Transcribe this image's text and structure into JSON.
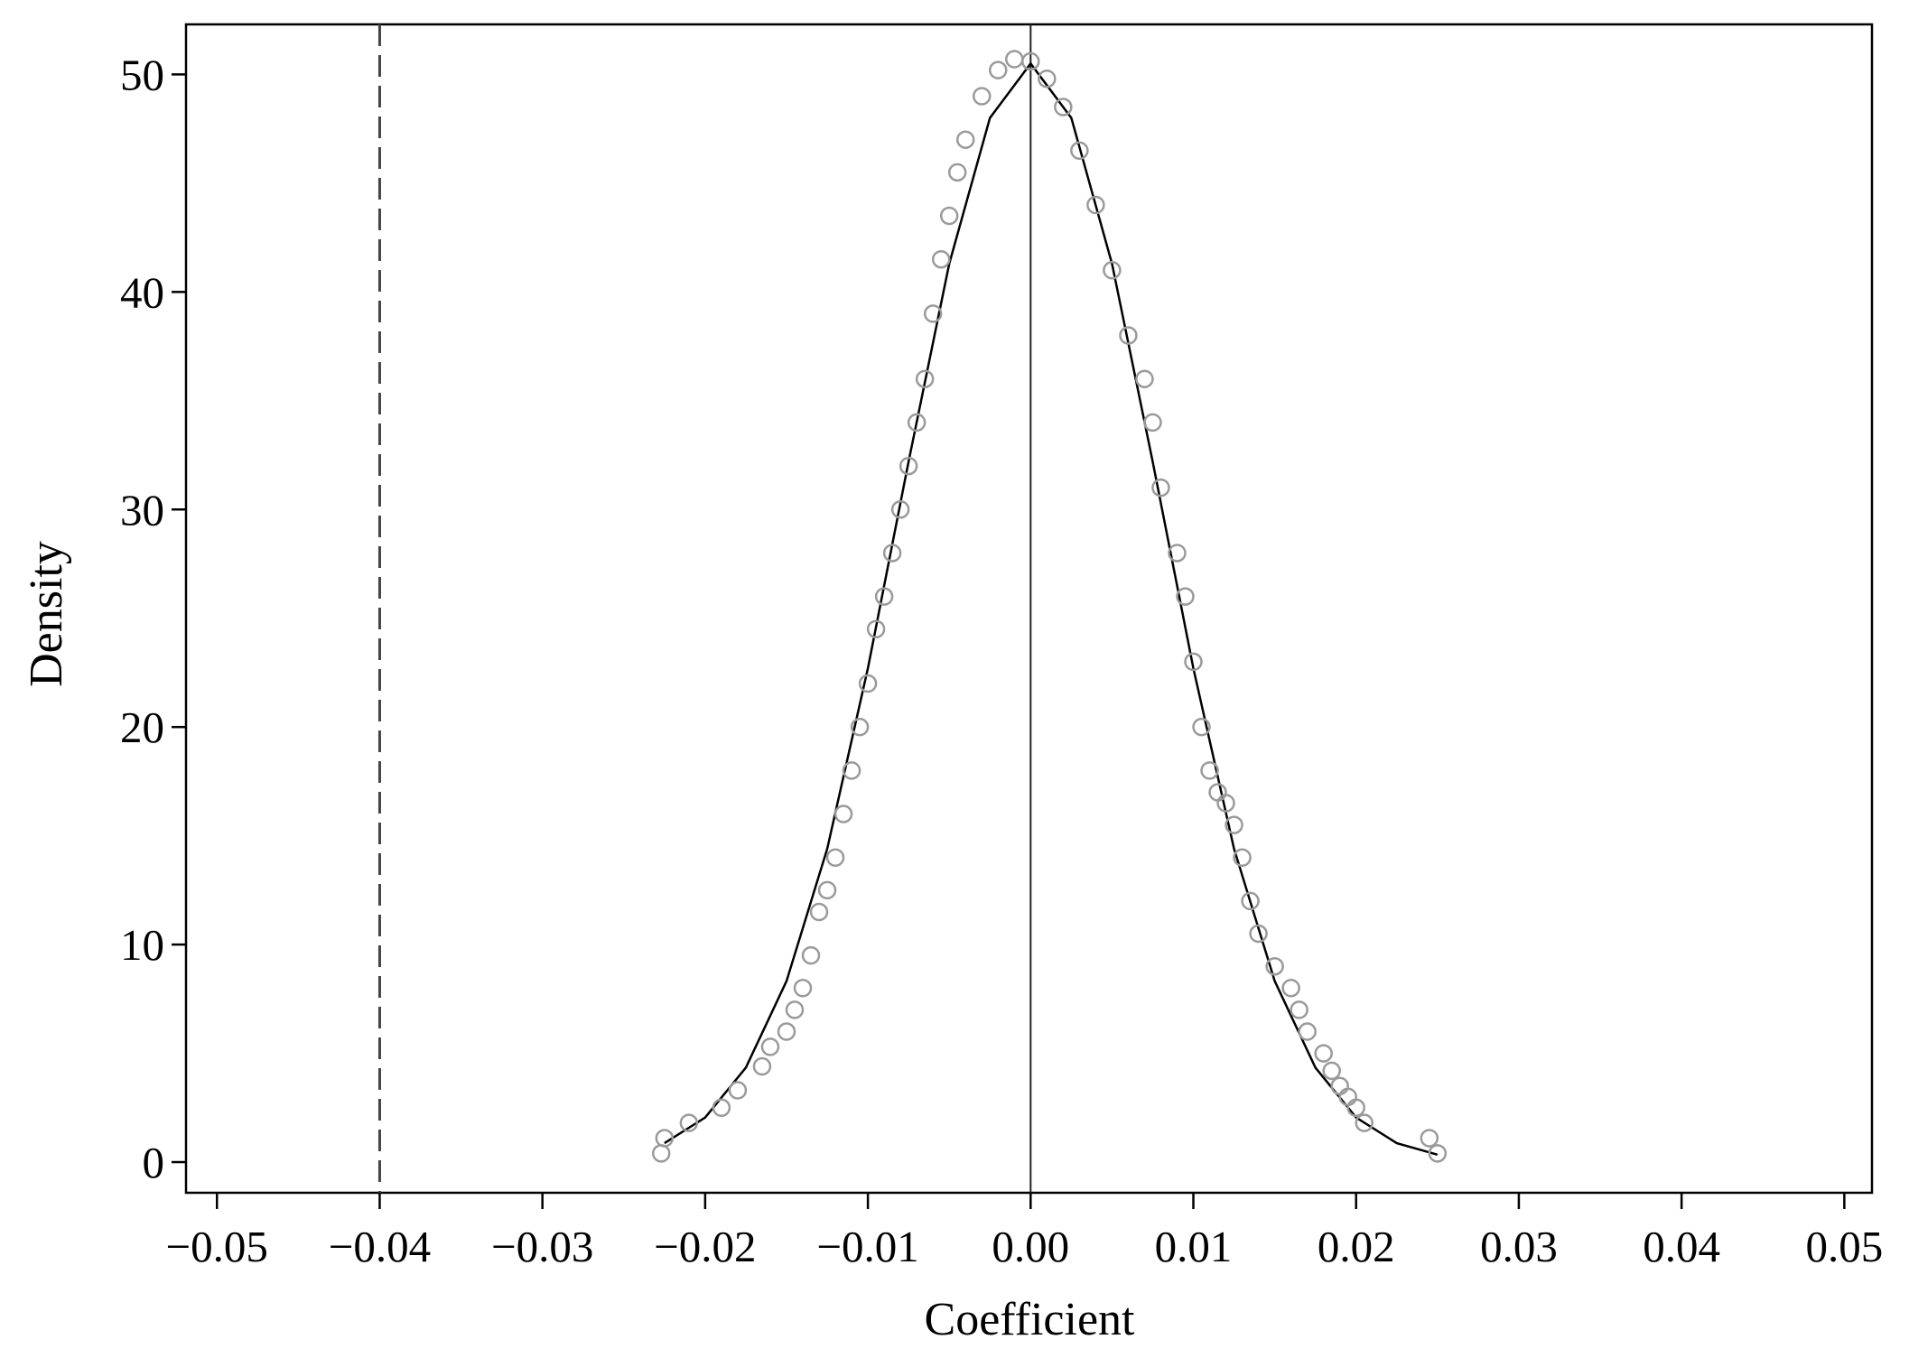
{
  "chart_data": {
    "type": "scatter",
    "x_label": "Coefficient",
    "y_label": "Density",
    "xlim": [
      -0.0519,
      0.0517
    ],
    "ylim": [
      -1.41,
      52.3
    ],
    "xticks": [
      {
        "value": -0.05,
        "label": "−0.05"
      },
      {
        "value": -0.04,
        "label": "−0.04"
      },
      {
        "value": -0.03,
        "label": "−0.03"
      },
      {
        "value": -0.02,
        "label": "−0.02"
      },
      {
        "value": -0.01,
        "label": "−0.01"
      },
      {
        "value": 0,
        "label": "0.00"
      },
      {
        "value": 0.01,
        "label": "0.01"
      },
      {
        "value": 0.02,
        "label": "0.02"
      },
      {
        "value": 0.03,
        "label": "0.03"
      },
      {
        "value": 0.04,
        "label": "0.04"
      },
      {
        "value": 0.05,
        "label": "0.05"
      }
    ],
    "yticks": [
      0,
      10,
      20,
      30,
      40,
      50
    ],
    "grid": false,
    "series": [
      {
        "type": "scatter",
        "color": "#9a9a9a",
        "x": [
          -0.0227,
          -0.0225,
          -0.021,
          -0.019,
          -0.018,
          -0.0165,
          -0.016,
          -0.015,
          -0.0145,
          -0.014,
          -0.0135,
          -0.013,
          -0.0125,
          -0.012,
          -0.0115,
          -0.011,
          -0.0105,
          -0.01,
          -0.0095,
          -0.009,
          -0.0085,
          -0.008,
          -0.0075,
          -0.007,
          -0.0065,
          -0.006,
          -0.0055,
          -0.005,
          -0.0045,
          -0.004,
          -0.003,
          -0.002,
          -0.001,
          0,
          0.001,
          0.002,
          0.003,
          0.004,
          0.005,
          0.006,
          0.007,
          0.0075,
          0.008,
          0.009,
          0.0095,
          0.01,
          0.0105,
          0.011,
          0.0115,
          0.012,
          0.0125,
          0.013,
          0.0135,
          0.014,
          0.015,
          0.016,
          0.0165,
          0.017,
          0.018,
          0.0185,
          0.019,
          0.0195,
          0.02,
          0.0205,
          0.0245,
          0.025
        ],
        "values": [
          0.4,
          1.1,
          1.8,
          2.5,
          3.3,
          4.4,
          5.3,
          6.0,
          7.0,
          8.0,
          9.5,
          11.5,
          12.5,
          14,
          16,
          18,
          20,
          22,
          24.5,
          26,
          28,
          30,
          32,
          34,
          36,
          39,
          41.5,
          43.5,
          45.5,
          47,
          49,
          50.2,
          50.7,
          50.6,
          49.8,
          48.5,
          46.5,
          44,
          41,
          38,
          36,
          34,
          31,
          28,
          26,
          23,
          20,
          18,
          17,
          16.5,
          15.5,
          14,
          12,
          10.5,
          9,
          8,
          7,
          6,
          5,
          4.2,
          3.5,
          3.0,
          2.5,
          1.8,
          1.1,
          0.4
        ]
      },
      {
        "type": "line",
        "color": "#000000",
        "x": [
          -0.0225,
          -0.02,
          -0.0175,
          -0.015,
          -0.0125,
          -0.01,
          -0.0075,
          -0.005,
          -0.0025,
          0,
          0.0025,
          0.005,
          0.0075,
          0.01,
          0.0125,
          0.015,
          0.0175,
          0.02,
          0.0225,
          0.025
        ],
        "values": [
          0.87,
          2.05,
          4.34,
          8.32,
          14.4,
          22.7,
          32.2,
          41.3,
          48.0,
          50.5,
          48.0,
          41.3,
          32.2,
          22.7,
          14.4,
          8.32,
          4.34,
          2.05,
          0.87,
          0.34
        ]
      }
    ],
    "vlines": [
      {
        "x": 0,
        "style": "solid"
      },
      {
        "x": -0.04,
        "style": "dashed"
      }
    ]
  }
}
